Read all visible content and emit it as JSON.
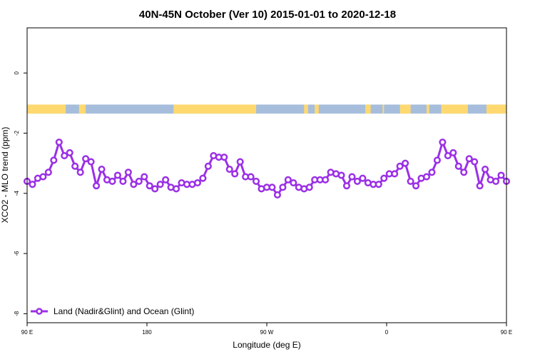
{
  "chart_data": {
    "type": "line",
    "title": "40N-45N October (Ver 10)   2015-01-01 to 2020-12-18",
    "xlabel": "Longitude (deg E)",
    "ylabel": "XCO2 - MLO trend (ppm)",
    "xlim": [
      90,
      450
    ],
    "ylim": [
      -8.3,
      1.5
    ],
    "x_ticks": [
      {
        "value": 90,
        "label": "90 E"
      },
      {
        "value": 180,
        "label": "180"
      },
      {
        "value": 270,
        "label": "90 W"
      },
      {
        "value": 360,
        "label": "0"
      },
      {
        "value": 450,
        "label": "90 E"
      },
      {
        "value": 540,
        "label": "180"
      }
    ],
    "y_ticks": [
      0,
      -2,
      -4,
      -6,
      -8
    ],
    "legend": {
      "placement": "bottom-left",
      "entries": [
        "Land (Nadir&Glint) and Ocean (Glint)"
      ]
    },
    "colors": {
      "series": "#9b30e6",
      "land": "#ffd970",
      "ocean": "#a6bedc"
    },
    "land_ocean_band": {
      "y_range": [
        -1.35,
        -1.05
      ],
      "land_segments": [
        [
          90,
          119
        ],
        [
          129,
          134
        ],
        [
          200,
          262
        ],
        [
          298,
          301
        ],
        [
          306,
          309
        ],
        [
          344,
          348
        ],
        [
          357,
          358
        ],
        [
          370,
          378
        ],
        [
          390,
          392
        ],
        [
          401,
          421
        ],
        [
          435,
          490
        ],
        [
          500,
          505
        ],
        [
          515,
          516
        ]
      ]
    },
    "series": [
      {
        "name": "Land (Nadir&Glint) and Ocean (Glint)",
        "x": [
          90,
          94,
          98,
          102,
          106,
          110,
          114,
          118,
          122,
          126,
          130,
          134,
          138,
          142,
          146,
          150,
          154,
          158,
          162,
          166,
          170,
          174,
          178,
          182,
          186,
          190,
          194,
          198,
          202,
          206,
          210,
          214,
          218,
          222,
          226,
          230,
          234,
          238,
          242,
          246,
          250,
          254,
          258,
          262,
          266,
          270,
          274,
          278,
          282,
          286,
          290,
          294,
          298,
          302,
          306,
          310,
          314,
          318,
          322,
          326,
          330,
          334,
          338,
          342,
          346,
          350,
          354,
          358,
          362,
          366,
          370,
          374,
          378,
          382,
          386,
          390,
          394,
          398,
          402,
          406,
          410,
          414,
          418,
          422,
          426,
          430,
          434,
          438,
          442,
          446,
          450
        ],
        "values": [
          -3.6,
          -3.7,
          -3.5,
          -3.45,
          -3.3,
          -2.9,
          -2.3,
          -2.75,
          -2.65,
          -3.1,
          -3.3,
          -2.85,
          -2.95,
          -3.75,
          -3.2,
          -3.55,
          -3.6,
          -3.4,
          -3.6,
          -3.3,
          -3.7,
          -3.6,
          -3.45,
          -3.75,
          -3.85,
          -3.7,
          -3.55,
          -3.8,
          -3.85,
          -3.65,
          -3.7,
          -3.7,
          -3.65,
          -3.5,
          -3.1,
          -2.75,
          -2.8,
          -2.8,
          -3.2,
          -3.35,
          -2.95,
          -3.45,
          -3.45,
          -3.6,
          -3.85,
          -3.8,
          -3.8,
          -4.05,
          -3.8,
          -3.55,
          -3.65,
          -3.8,
          -3.85,
          -3.8,
          -3.55,
          -3.55,
          -3.55,
          -3.3,
          -3.35,
          -3.4,
          -3.75,
          -3.45,
          -3.6,
          -3.5,
          -3.65,
          -3.7,
          -3.7,
          -3.5,
          -3.35,
          -3.35,
          -3.1,
          -3.0,
          -3.6,
          -3.75,
          -3.5,
          -3.45,
          -3.3,
          -2.9,
          -2.3,
          -2.75,
          -2.65,
          -3.1,
          -3.3,
          -2.85,
          -2.95,
          -3.75,
          -3.2,
          -3.55,
          -3.6,
          -3.4,
          -3.6
        ]
      }
    ]
  }
}
